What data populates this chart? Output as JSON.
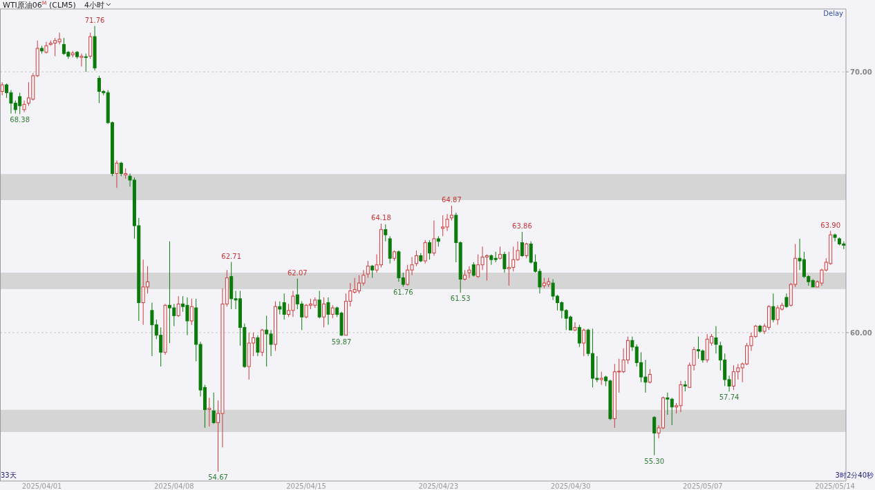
{
  "chart_data": {
    "type": "candlestick",
    "title": "WTI原油06$^{M}$ (CLM5)",
    "subtitle": "4小时",
    "annotations": [
      "Delay",
      "33天",
      "3时2分40秒",
      {
        "text": "71.76",
        "y": 71.76
      },
      {
        "text": "68.38",
        "y": 68.38
      },
      {
        "text": "62.71",
        "y": 62.71
      },
      {
        "text": "54.67",
        "y": 54.67
      },
      {
        "text": "62.07",
        "y": 62.07
      },
      {
        "text": "59.87",
        "y": 59.87
      },
      {
        "text": "64.18",
        "y": 64.18
      },
      {
        "text": "61.76",
        "y": 61.76
      },
      {
        "text": "64.87",
        "y": 64.87
      },
      {
        "text": "61.53",
        "y": 61.53
      },
      {
        "text": "63.86",
        "y": 63.86
      },
      {
        "text": "55.30",
        "y": 55.3
      },
      {
        "text": "57.74",
        "y": 57.74
      },
      {
        "text": "63.90",
        "y": 63.9
      }
    ],
    "categories": [
      null,
      null,
      null,
      null,
      null,
      null,
      null,
      null,
      null,
      "2025/04/01",
      null,
      null,
      null,
      null,
      null,
      null,
      null,
      null,
      null,
      null,
      null,
      null,
      null,
      null,
      null,
      null,
      null,
      null,
      null,
      null,
      null,
      null,
      null,
      null,
      null,
      null,
      null,
      null,
      null,
      "2025/04/08",
      null,
      null,
      null,
      null,
      null,
      null,
      null,
      null,
      null,
      null,
      null,
      null,
      null,
      null,
      null,
      null,
      null,
      null,
      null,
      null,
      null,
      null,
      null,
      null,
      null,
      null,
      null,
      null,
      null,
      "2025/04/15",
      null,
      null,
      null,
      null,
      null,
      null,
      null,
      null,
      null,
      null,
      null,
      null,
      null,
      null,
      null,
      null,
      null,
      null,
      null,
      null,
      null,
      null,
      null,
      null,
      null,
      null,
      null,
      null,
      null,
      "2025/04/23",
      null,
      null,
      null,
      null,
      null,
      null,
      null,
      null,
      null,
      null,
      null,
      null,
      null,
      null,
      null,
      null,
      null,
      null,
      null,
      null,
      null,
      null,
      null,
      null,
      null,
      null,
      null,
      null,
      null,
      "2025/04/30",
      null,
      null,
      null,
      null,
      null,
      null,
      null,
      null,
      null,
      null,
      null,
      null,
      null,
      null,
      null,
      null,
      null,
      null,
      null,
      null,
      null,
      null,
      null,
      null,
      null,
      null,
      null,
      null,
      null,
      "2025/05/07",
      null,
      null,
      null,
      null,
      null,
      null,
      null,
      null,
      null,
      null,
      null,
      null,
      null,
      null,
      null,
      null,
      null,
      null,
      null,
      null,
      null,
      null,
      null,
      null,
      null,
      null,
      null,
      null,
      null,
      "2025/05/14",
      null,
      null
    ],
    "ohlc": [
      [
        69.25,
        69.6,
        69.1,
        69.5
      ],
      [
        69.5,
        69.55,
        69.0,
        69.2
      ],
      [
        69.2,
        69.3,
        68.4,
        68.8
      ],
      [
        68.8,
        68.9,
        68.4,
        68.55
      ],
      [
        69.05,
        69.2,
        68.38,
        68.7
      ],
      [
        68.55,
        68.9,
        68.45,
        68.75
      ],
      [
        68.8,
        69.6,
        68.7,
        69.0
      ],
      [
        68.95,
        69.95,
        68.9,
        69.85
      ],
      [
        69.85,
        71.2,
        69.8,
        70.9
      ],
      [
        70.9,
        71.0,
        70.7,
        70.8
      ],
      [
        70.75,
        71.15,
        70.7,
        71.0
      ],
      [
        71.05,
        71.2,
        71.0,
        71.1
      ],
      [
        71.1,
        71.3,
        70.6,
        71.2
      ],
      [
        71.15,
        71.5,
        71.05,
        71.25
      ],
      [
        71.05,
        71.3,
        70.65,
        70.7
      ],
      [
        70.75,
        70.8,
        70.5,
        70.6
      ],
      [
        70.65,
        70.8,
        70.55,
        70.72
      ],
      [
        70.75,
        70.8,
        70.5,
        70.58
      ],
      [
        70.55,
        70.7,
        70.2,
        70.6
      ],
      [
        70.58,
        70.7,
        70.0,
        70.55
      ],
      [
        70.6,
        71.5,
        70.5,
        71.35
      ],
      [
        71.35,
        71.76,
        70.05,
        70.15
      ],
      [
        69.75,
        69.85,
        68.8,
        69.25
      ],
      [
        69.25,
        69.3,
        69.1,
        69.2
      ],
      [
        69.2,
        69.3,
        68.0,
        68.05
      ],
      [
        68.05,
        68.1,
        66.0,
        66.1
      ],
      [
        66.1,
        66.6,
        65.55,
        66.5
      ],
      [
        66.5,
        66.55,
        66.0,
        66.1
      ],
      [
        66.05,
        66.3,
        65.9,
        66.1
      ],
      [
        66.0,
        66.1,
        65.6,
        65.85
      ],
      [
        65.85,
        65.95,
        63.6,
        64.1
      ],
      [
        64.1,
        64.4,
        60.45,
        61.15
      ],
      [
        61.15,
        62.8,
        60.3,
        61.75
      ],
      [
        61.75,
        62.55,
        61.5,
        61.95
      ],
      [
        60.85,
        61.15,
        59.1,
        60.3
      ],
      [
        60.3,
        60.5,
        59.75,
        59.9
      ],
      [
        59.9,
        60.2,
        58.7,
        59.25
      ],
      [
        59.25,
        61.1,
        59.15,
        61.05
      ],
      [
        61.05,
        63.5,
        59.6,
        60.95
      ],
      [
        60.95,
        61.1,
        60.25,
        60.65
      ],
      [
        60.65,
        61.4,
        60.6,
        61.1
      ],
      [
        61.1,
        61.4,
        60.8,
        61.0
      ],
      [
        61.05,
        61.35,
        59.9,
        60.45
      ],
      [
        60.45,
        61.3,
        60.3,
        61.0
      ],
      [
        60.95,
        61.3,
        58.9,
        59.55
      ],
      [
        59.55,
        59.65,
        57.55,
        57.8
      ],
      [
        57.9,
        58.0,
        56.35,
        57.05
      ],
      [
        57.05,
        57.5,
        56.4,
        57.1
      ],
      [
        57.0,
        57.7,
        56.5,
        56.55
      ],
      [
        56.55,
        57.4,
        54.67,
        56.9
      ],
      [
        56.9,
        61.7,
        55.6,
        61.1
      ],
      [
        61.1,
        62.4,
        61.0,
        62.1
      ],
      [
        62.15,
        62.71,
        60.9,
        61.3
      ],
      [
        61.3,
        61.6,
        60.9,
        61.25
      ],
      [
        61.3,
        61.6,
        59.5,
        60.2
      ],
      [
        60.2,
        60.35,
        58.65,
        58.7
      ],
      [
        58.7,
        60.0,
        58.2,
        59.6
      ],
      [
        59.6,
        60.0,
        59.1,
        59.8
      ],
      [
        59.8,
        59.9,
        59.1,
        59.25
      ],
      [
        59.25,
        60.15,
        59.1,
        60.1
      ],
      [
        60.1,
        60.65,
        58.7,
        59.95
      ],
      [
        59.95,
        60.1,
        59.1,
        59.55
      ],
      [
        59.55,
        61.2,
        59.3,
        61.0
      ],
      [
        61.0,
        61.2,
        60.7,
        60.9
      ],
      [
        61.15,
        61.5,
        60.5,
        60.7
      ],
      [
        60.7,
        61.1,
        60.6,
        60.85
      ],
      [
        60.85,
        61.6,
        60.6,
        61.4
      ],
      [
        61.45,
        62.07,
        60.9,
        61.1
      ],
      [
        61.1,
        61.2,
        60.1,
        60.6
      ],
      [
        60.6,
        61.1,
        60.55,
        61.05
      ],
      [
        61.05,
        61.3,
        60.9,
        61.1
      ],
      [
        61.05,
        61.35,
        60.95,
        61.25
      ],
      [
        61.25,
        61.6,
        60.55,
        60.6
      ],
      [
        60.6,
        61.35,
        60.2,
        61.1
      ],
      [
        61.15,
        61.35,
        60.3,
        60.7
      ],
      [
        60.7,
        61.05,
        60.55,
        60.95
      ],
      [
        60.95,
        61.0,
        60.6,
        60.7
      ],
      [
        60.75,
        60.8,
        59.87,
        59.9
      ],
      [
        59.9,
        61.5,
        59.9,
        61.2
      ],
      [
        61.2,
        61.9,
        61.0,
        61.6
      ],
      [
        61.55,
        62.1,
        61.5,
        61.65
      ],
      [
        61.6,
        62.2,
        61.5,
        61.9
      ],
      [
        61.9,
        62.4,
        61.8,
        62.2
      ],
      [
        62.25,
        62.75,
        62.1,
        62.55
      ],
      [
        62.55,
        62.6,
        62.1,
        62.4
      ],
      [
        62.4,
        63.0,
        62.3,
        62.6
      ],
      [
        62.6,
        64.18,
        62.5,
        63.95
      ],
      [
        63.95,
        64.15,
        63.5,
        63.75
      ],
      [
        63.6,
        63.7,
        62.65,
        62.85
      ],
      [
        62.85,
        63.15,
        62.75,
        63.1
      ],
      [
        63.1,
        63.15,
        61.95,
        62.1
      ],
      [
        62.1,
        62.3,
        61.76,
        61.85
      ],
      [
        61.85,
        62.6,
        61.8,
        62.4
      ],
      [
        62.4,
        62.9,
        62.2,
        62.6
      ],
      [
        62.65,
        63.15,
        62.55,
        62.95
      ],
      [
        62.95,
        63.05,
        62.7,
        62.75
      ],
      [
        62.75,
        63.55,
        62.65,
        63.45
      ],
      [
        63.45,
        63.55,
        62.8,
        63.05
      ],
      [
        63.05,
        64.3,
        62.95,
        63.6
      ],
      [
        63.6,
        63.7,
        63.3,
        63.5
      ],
      [
        64.0,
        64.5,
        63.7,
        64.05
      ],
      [
        64.05,
        64.55,
        63.9,
        64.35
      ],
      [
        64.4,
        64.87,
        64.3,
        64.5
      ],
      [
        64.5,
        64.6,
        62.7,
        63.45
      ],
      [
        63.45,
        63.5,
        61.53,
        62.05
      ],
      [
        62.05,
        62.4,
        62.0,
        62.2
      ],
      [
        62.3,
        62.55,
        62.1,
        62.4
      ],
      [
        62.6,
        62.7,
        62.15,
        62.2
      ],
      [
        62.15,
        63.0,
        62.1,
        62.6
      ],
      [
        62.6,
        63.3,
        62.4,
        62.9
      ],
      [
        62.9,
        63.0,
        62.0,
        62.95
      ],
      [
        62.95,
        63.0,
        62.6,
        62.8
      ],
      [
        62.85,
        63.1,
        62.7,
        62.8
      ],
      [
        62.85,
        63.3,
        62.8,
        63.0
      ],
      [
        63.0,
        63.1,
        62.3,
        62.45
      ],
      [
        62.45,
        63.1,
        61.8,
        62.5
      ],
      [
        62.5,
        63.3,
        62.35,
        62.8
      ],
      [
        62.8,
        63.5,
        62.75,
        63.15
      ],
      [
        63.45,
        63.86,
        62.9,
        62.95
      ],
      [
        62.95,
        63.45,
        62.85,
        63.4
      ],
      [
        63.4,
        63.5,
        62.65,
        62.7
      ],
      [
        62.7,
        63.0,
        62.3,
        62.35
      ],
      [
        62.35,
        62.45,
        61.5,
        61.75
      ],
      [
        61.8,
        62.1,
        61.7,
        61.9
      ],
      [
        61.85,
        62.1,
        61.75,
        61.95
      ],
      [
        61.9,
        62.05,
        61.25,
        61.4
      ],
      [
        61.4,
        61.45,
        60.85,
        61.15
      ],
      [
        61.15,
        61.2,
        60.55,
        60.85
      ],
      [
        60.85,
        60.9,
        60.1,
        60.55
      ],
      [
        60.6,
        60.65,
        60.1,
        60.1
      ],
      [
        60.1,
        60.4,
        60.05,
        60.2
      ],
      [
        60.2,
        60.3,
        59.45,
        59.6
      ],
      [
        59.6,
        60.15,
        59.1,
        60.1
      ],
      [
        60.1,
        60.15,
        59.1,
        59.2
      ],
      [
        59.2,
        60.15,
        57.9,
        58.25
      ],
      [
        58.25,
        59.1,
        58.1,
        58.2
      ],
      [
        58.2,
        58.5,
        58.0,
        58.25
      ],
      [
        58.3,
        58.35,
        57.95,
        58.15
      ],
      [
        58.15,
        58.2,
        56.65,
        56.7
      ],
      [
        56.7,
        58.8,
        56.35,
        58.5
      ],
      [
        58.5,
        59.0,
        57.7,
        58.52
      ],
      [
        58.5,
        59.4,
        58.45,
        58.95
      ],
      [
        58.95,
        59.85,
        58.8,
        59.7
      ],
      [
        59.7,
        59.85,
        59.3,
        59.45
      ],
      [
        59.45,
        59.55,
        58.7,
        58.85
      ],
      [
        58.85,
        59.25,
        58.1,
        58.3
      ],
      [
        58.3,
        58.95,
        57.7,
        58.1
      ],
      [
        58.1,
        58.6,
        58.05,
        58.4
      ],
      [
        56.75,
        56.8,
        55.3,
        56.15
      ],
      [
        56.15,
        56.45,
        55.95,
        56.35
      ],
      [
        56.35,
        57.55,
        56.3,
        57.5
      ],
      [
        57.5,
        57.7,
        56.85,
        57.45
      ],
      [
        57.45,
        57.5,
        56.45,
        57.15
      ],
      [
        57.15,
        57.3,
        56.9,
        57.2
      ],
      [
        57.2,
        58.15,
        56.95,
        58.0
      ],
      [
        58.0,
        58.15,
        57.75,
        57.95
      ],
      [
        57.9,
        58.85,
        57.9,
        58.75
      ],
      [
        58.75,
        59.45,
        58.55,
        59.35
      ],
      [
        59.35,
        59.85,
        59.0,
        59.3
      ],
      [
        59.3,
        59.35,
        58.85,
        58.95
      ],
      [
        58.95,
        59.95,
        58.85,
        59.75
      ],
      [
        59.6,
        59.95,
        59.5,
        59.85
      ],
      [
        59.8,
        60.25,
        59.2,
        59.55
      ],
      [
        59.5,
        59.65,
        58.55,
        58.95
      ],
      [
        58.95,
        59.2,
        57.95,
        58.2
      ],
      [
        58.2,
        58.35,
        57.74,
        57.95
      ],
      [
        57.95,
        58.75,
        57.8,
        58.5
      ],
      [
        58.5,
        58.8,
        58.2,
        58.65
      ],
      [
        58.65,
        58.85,
        58.1,
        58.8
      ],
      [
        58.8,
        59.6,
        58.75,
        59.5
      ],
      [
        59.5,
        60.0,
        59.3,
        59.85
      ],
      [
        59.85,
        60.3,
        59.8,
        60.25
      ],
      [
        60.25,
        60.3,
        60.0,
        60.05
      ],
      [
        60.05,
        60.35,
        59.95,
        60.25
      ],
      [
        60.2,
        61.05,
        60.1,
        61.0
      ],
      [
        61.0,
        61.5,
        60.4,
        60.5
      ],
      [
        60.5,
        61.05,
        60.3,
        60.95
      ],
      [
        60.9,
        61.15,
        60.85,
        61.05
      ],
      [
        61.35,
        61.5,
        60.95,
        61.0
      ],
      [
        61.05,
        61.9,
        61.0,
        61.85
      ],
      [
        61.85,
        63.4,
        61.75,
        62.85
      ],
      [
        62.85,
        63.6,
        62.4,
        62.75
      ],
      [
        62.8,
        63.1,
        62.1,
        62.15
      ],
      [
        62.15,
        62.2,
        61.8,
        61.95
      ],
      [
        62.0,
        62.05,
        61.75,
        61.75
      ],
      [
        61.75,
        62.0,
        61.75,
        61.95
      ],
      [
        61.9,
        62.45,
        61.8,
        62.4
      ],
      [
        62.4,
        62.85,
        62.35,
        62.7
      ],
      [
        62.65,
        63.9,
        62.6,
        63.75
      ],
      [
        63.75,
        63.8,
        63.5,
        63.65
      ],
      [
        63.6,
        63.65,
        63.35,
        63.4
      ],
      [
        63.4,
        63.5,
        63.2,
        63.35
      ]
    ],
    "colors": [
      "#d03a3a",
      "#0a7a0a",
      "#0a7a0a",
      "#0a7a0a",
      "#0a7a0a",
      "#d03a3a",
      "#d03a3a",
      "#d03a3a",
      "#d03a3a",
      "#0a7a0a",
      "#d03a3a",
      "#d03a3a",
      "#d03a3a",
      "#d03a3a",
      "#0a7a0a",
      "#0a7a0a",
      "#d03a3a",
      "#0a7a0a",
      "#d03a3a",
      "#0a7a0a",
      "#d03a3a",
      "#0a7a0a",
      "#0a7a0a",
      "#0a7a0a",
      "#0a7a0a",
      "#0a7a0a",
      "#d03a3a",
      "#0a7a0a",
      "#d03a3a",
      "#0a7a0a",
      "#0a7a0a",
      "#0a7a0a",
      "#d03a3a",
      "#d03a3a",
      "#0a7a0a",
      "#0a7a0a",
      "#0a7a0a",
      "#d03a3a",
      "#0a7a0a",
      "#0a7a0a",
      "#d03a3a",
      "#0a7a0a",
      "#0a7a0a",
      "#d03a3a",
      "#0a7a0a",
      "#0a7a0a",
      "#0a7a0a",
      "#d03a3a",
      "#0a7a0a",
      "#d03a3a",
      "#d03a3a",
      "#d03a3a",
      "#0a7a0a",
      "#0a7a0a",
      "#0a7a0a",
      "#0a7a0a",
      "#d03a3a",
      "#d03a3a",
      "#0a7a0a",
      "#d03a3a",
      "#0a7a0a",
      "#0a7a0a",
      "#d03a3a",
      "#0a7a0a",
      "#0a7a0a",
      "#d03a3a",
      "#d03a3a",
      "#0a7a0a",
      "#0a7a0a",
      "#d03a3a",
      "#d03a3a",
      "#d03a3a",
      "#0a7a0a",
      "#d03a3a",
      "#0a7a0a",
      "#d03a3a",
      "#0a7a0a",
      "#0a7a0a",
      "#d03a3a",
      "#d03a3a",
      "#d03a3a",
      "#d03a3a",
      "#d03a3a",
      "#d03a3a",
      "#0a7a0a",
      "#d03a3a",
      "#d03a3a",
      "#0a7a0a",
      "#0a7a0a",
      "#d03a3a",
      "#0a7a0a",
      "#0a7a0a",
      "#d03a3a",
      "#d03a3a",
      "#d03a3a",
      "#0a7a0a",
      "#d03a3a",
      "#0a7a0a",
      "#d03a3a",
      "#0a7a0a",
      "#d03a3a",
      "#d03a3a",
      "#d03a3a",
      "#0a7a0a",
      "#0a7a0a",
      "#d03a3a",
      "#d03a3a",
      "#0a7a0a",
      "#d03a3a",
      "#d03a3a",
      "#d03a3a",
      "#0a7a0a",
      "#0a7a0a",
      "#d03a3a",
      "#0a7a0a",
      "#d03a3a",
      "#d03a3a",
      "#d03a3a",
      "#0a7a0a",
      "#d03a3a",
      "#0a7a0a",
      "#0a7a0a",
      "#0a7a0a",
      "#d03a3a",
      "#d03a3a",
      "#0a7a0a",
      "#0a7a0a",
      "#0a7a0a",
      "#0a7a0a",
      "#0a7a0a",
      "#d03a3a",
      "#0a7a0a",
      "#d03a3a",
      "#0a7a0a",
      "#0a7a0a",
      "#0a7a0a",
      "#d03a3a",
      "#0a7a0a",
      "#0a7a0a",
      "#d03a3a",
      "#d03a3a",
      "#d03a3a",
      "#d03a3a",
      "#0a7a0a",
      "#0a7a0a",
      "#0a7a0a",
      "#0a7a0a",
      "#d03a3a",
      "#0a7a0a",
      "#d03a3a",
      "#d03a3a",
      "#0a7a0a",
      "#0a7a0a",
      "#d03a3a",
      "#d03a3a",
      "#0a7a0a",
      "#d03a3a",
      "#d03a3a",
      "#0a7a0a",
      "#0a7a0a",
      "#d03a3a",
      "#d03a3a",
      "#0a7a0a",
      "#0a7a0a",
      "#0a7a0a",
      "#0a7a0a",
      "#d03a3a",
      "#d03a3a",
      "#d03a3a",
      "#d03a3a",
      "#d03a3a",
      "#d03a3a",
      "#0a7a0a",
      "#d03a3a",
      "#d03a3a",
      "#0a7a0a",
      "#d03a3a",
      "#d03a3a",
      "#0a7a0a",
      "#d03a3a",
      "#d03a3a",
      "#0a7a0a",
      "#0a7a0a",
      "#0a7a0a",
      "#0a7a0a",
      "#d03a3a",
      "#d03a3a",
      "#d03a3a",
      "#d03a3a",
      "#0a7a0a",
      "#0a7a0a",
      "#0a7a0a"
    ],
    "ylim": [
      54.31,
      72.41
    ],
    "yticks": [
      {
        "value": 60,
        "label": "60.00"
      },
      {
        "value": 70,
        "label": "70.00"
      }
    ],
    "grid": "y",
    "bands": [
      {
        "axis": "y",
        "from": 65.08,
        "to": 66.08,
        "color": "#c0c0c0"
      },
      {
        "axis": "y",
        "from": 56.19,
        "to": 57.04,
        "color": "#c0c0c0"
      },
      {
        "axis": "y",
        "from": 61.67,
        "to": 62.3,
        "color": "#c0c0c0"
      }
    ]
  }
}
